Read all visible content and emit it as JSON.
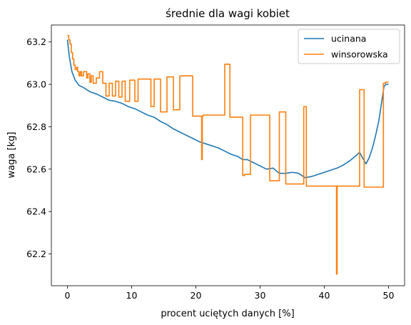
{
  "chart_data": {
    "type": "line",
    "title": "średnie dla wagi kobiet",
    "xlabel": "procent uciętych danych [%]",
    "ylabel": "waga [kg]",
    "xlim": [
      -2.5,
      52.5
    ],
    "ylim": [
      62.05,
      63.28
    ],
    "xticks": [
      0,
      10,
      20,
      30,
      40,
      50
    ],
    "xtick_labels": [
      "0",
      "10",
      "20",
      "30",
      "40",
      "50"
    ],
    "yticks": [
      62.2,
      62.4,
      62.6,
      62.8,
      63.0,
      63.2
    ],
    "ytick_labels": [
      "62.2",
      "62.4",
      "62.6",
      "62.8",
      "63.0",
      "63.2"
    ],
    "grid": false,
    "legend_position": "top-right",
    "series": [
      {
        "name": "ucinana",
        "color": "#1f77b4",
        "step": false,
        "x": [
          0,
          0.3,
          0.7,
          1.2,
          1.8,
          2.5,
          3.5,
          4.5,
          5.5,
          6.5,
          7.5,
          8.5,
          9.5,
          10.5,
          11.5,
          12.5,
          13.5,
          14.5,
          15.5,
          16.5,
          17.5,
          18.5,
          19.5,
          20.5,
          21.5,
          22.5,
          23.5,
          24.5,
          25.5,
          26.5,
          27.3,
          28,
          29,
          30,
          31,
          32,
          33,
          34,
          35,
          36,
          37,
          38,
          39,
          40,
          41,
          42,
          43,
          44,
          45,
          45.5,
          46,
          46.5,
          47,
          47.5,
          48,
          48.5,
          49,
          49.3,
          49.6,
          50
        ],
        "y": [
          63.21,
          63.13,
          63.06,
          63.02,
          62.995,
          62.985,
          62.965,
          62.955,
          62.94,
          62.925,
          62.92,
          62.91,
          62.895,
          62.885,
          62.87,
          62.855,
          62.845,
          62.825,
          62.81,
          62.79,
          62.775,
          62.76,
          62.745,
          62.73,
          62.72,
          62.71,
          62.7,
          62.685,
          62.67,
          62.66,
          62.645,
          62.645,
          62.63,
          62.615,
          62.6,
          62.605,
          62.58,
          62.58,
          62.585,
          62.58,
          62.56,
          62.565,
          62.575,
          62.585,
          62.595,
          62.605,
          62.62,
          62.64,
          62.665,
          62.68,
          62.65,
          62.625,
          62.655,
          62.7,
          62.76,
          62.83,
          62.93,
          62.99,
          63.0,
          63.0
        ]
      },
      {
        "name": "winsorowska",
        "color": "#ff7f0e",
        "step": true,
        "x": [
          0,
          0.2,
          0.4,
          0.6,
          0.8,
          1.0,
          1.2,
          1.4,
          1.6,
          1.8,
          2.0,
          2.2,
          2.5,
          3.0,
          3.2,
          3.5,
          3.7,
          4.0,
          4.5,
          5.0,
          5.5,
          6.0,
          6.5,
          7.0,
          7.5,
          8.0,
          8.5,
          9.0,
          9.7,
          10.5,
          11.0,
          13.0,
          13.5,
          14.5,
          15.5,
          16.5,
          17.5,
          19.5,
          20.9,
          21.0,
          21.1,
          24.5,
          25.3,
          27.3,
          27.6,
          28.5,
          31.5,
          33.0,
          34.0,
          36.8,
          37.2,
          38.0,
          41.9,
          42.0,
          42.1,
          45.5,
          46.2,
          49.2,
          49.5,
          50
        ],
        "y": [
          63.23,
          63.21,
          63.19,
          63.15,
          63.12,
          63.09,
          63.07,
          63.08,
          63.06,
          63.04,
          63.06,
          63.04,
          63.06,
          63.03,
          63.05,
          63.01,
          63.04,
          63.005,
          63.03,
          63.06,
          63.005,
          62.945,
          63.005,
          62.945,
          63.015,
          62.94,
          63.015,
          62.92,
          63.02,
          62.92,
          63.025,
          62.895,
          63.025,
          62.87,
          63.035,
          62.88,
          63.04,
          62.85,
          62.645,
          62.85,
          62.855,
          63.095,
          62.845,
          62.57,
          62.575,
          62.855,
          62.545,
          62.87,
          62.53,
          62.895,
          62.52,
          62.52,
          62.105,
          62.52,
          62.52,
          62.975,
          62.515,
          63.005,
          63.01,
          63.01
        ]
      }
    ]
  }
}
